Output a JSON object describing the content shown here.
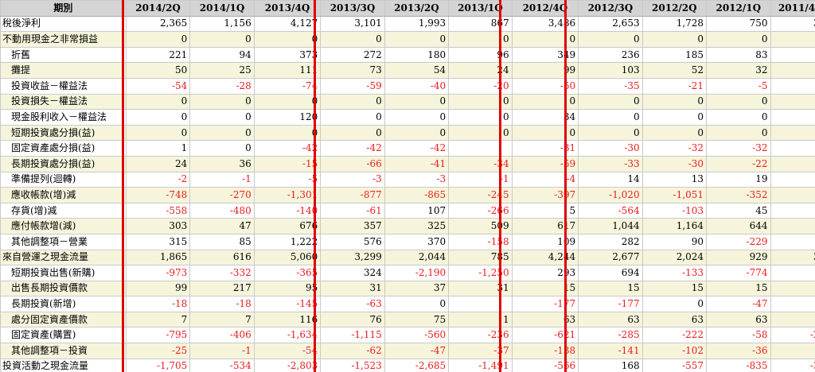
{
  "header": {
    "label": "期別",
    "periods": [
      "2014/2Q",
      "2014/1Q",
      "2013/4Q",
      "2013/3Q",
      "2013/2Q",
      "2013/1Q",
      "2012/4Q",
      "2012/3Q",
      "2012/2Q",
      "2012/1Q",
      "2011/4Q"
    ]
  },
  "rows": [
    {
      "label": "稅後淨利",
      "indent": false,
      "values": [
        "2,365",
        "1,156",
        "4,127",
        "3,101",
        "1,993",
        "867",
        "3,486",
        "2,653",
        "1,728",
        "750",
        "3,5"
      ]
    },
    {
      "label": "不動用現金之非常損益",
      "indent": false,
      "values": [
        "0",
        "0",
        "0",
        "0",
        "0",
        "0",
        "0",
        "0",
        "0",
        "0",
        "0"
      ]
    },
    {
      "label": "折舊",
      "indent": true,
      "values": [
        "221",
        "94",
        "373",
        "272",
        "180",
        "96",
        "349",
        "236",
        "185",
        "83",
        "3"
      ]
    },
    {
      "label": "攤提",
      "indent": true,
      "values": [
        "50",
        "25",
        "111",
        "73",
        "54",
        "24",
        "99",
        "103",
        "52",
        "32",
        "1"
      ]
    },
    {
      "label": "投資收益－權益法",
      "indent": true,
      "values": [
        "-54",
        "-28",
        "-74",
        "-59",
        "-40",
        "-20",
        "-50",
        "-35",
        "-21",
        "-5",
        ""
      ]
    },
    {
      "label": "投資損失－權益法",
      "indent": true,
      "values": [
        "0",
        "0",
        "0",
        "0",
        "0",
        "0",
        "0",
        "0",
        "0",
        "0",
        ""
      ]
    },
    {
      "label": "現金股利收入－權益法",
      "indent": true,
      "values": [
        "0",
        "0",
        "120",
        "0",
        "0",
        "0",
        "34",
        "0",
        "0",
        "0",
        ""
      ]
    },
    {
      "label": "短期投資處分損(益)",
      "indent": true,
      "values": [
        "0",
        "0",
        "0",
        "0",
        "0",
        "0",
        "0",
        "0",
        "0",
        "0",
        ""
      ]
    },
    {
      "label": "固定資產處分損(益)",
      "indent": true,
      "values": [
        "1",
        "0",
        "-42",
        "-42",
        "-42",
        "",
        "-31",
        "-30",
        "-32",
        "-32",
        ""
      ]
    },
    {
      "label": "長期投資處分損(益)",
      "indent": true,
      "values": [
        "24",
        "36",
        "-15",
        "-66",
        "-41",
        "-34",
        "-59",
        "-33",
        "-30",
        "-22",
        ""
      ]
    },
    {
      "label": "準備提列(迴轉)",
      "indent": true,
      "values": [
        "-2",
        "-1",
        "-5",
        "-3",
        "-3",
        "-1",
        "-4",
        "14",
        "13",
        "19",
        ""
      ]
    },
    {
      "label": "應收帳款(增)減",
      "indent": true,
      "values": [
        "-748",
        "-270",
        "-1,301",
        "-877",
        "-865",
        "-245",
        "-397",
        "-1,020",
        "-1,051",
        "-352",
        "-4"
      ]
    },
    {
      "label": "存貨(增)減",
      "indent": true,
      "values": [
        "-558",
        "-480",
        "-140",
        "-61",
        "107",
        "-266",
        "5",
        "-564",
        "-103",
        "45",
        "-3"
      ]
    },
    {
      "label": "應付帳款增(減)",
      "indent": true,
      "values": [
        "303",
        "47",
        "676",
        "357",
        "325",
        "509",
        "617",
        "1,044",
        "1,164",
        "644",
        ""
      ]
    },
    {
      "label": "其他調整項－營業",
      "indent": true,
      "values": [
        "315",
        "85",
        "1,222",
        "576",
        "370",
        "-158",
        "109",
        "282",
        "90",
        "-229",
        "6"
      ]
    },
    {
      "label": "來自營運之現金流量",
      "indent": false,
      "values": [
        "1,865",
        "616",
        "5,060",
        "3,299",
        "2,044",
        "785",
        "4,244",
        "2,677",
        "2,024",
        "929",
        "3,9"
      ]
    },
    {
      "label": "短期投資出售(新購)",
      "indent": true,
      "values": [
        "-973",
        "-332",
        "-365",
        "324",
        "-2,190",
        "-1,250",
        "293",
        "694",
        "-133",
        "-774",
        "-6"
      ]
    },
    {
      "label": "出售長期投資價款",
      "indent": true,
      "values": [
        "99",
        "217",
        "95",
        "31",
        "37",
        "31",
        "15",
        "15",
        "15",
        "15",
        ""
      ]
    },
    {
      "label": "長期投資(新增)",
      "indent": true,
      "values": [
        "-18",
        "-18",
        "-145",
        "-63",
        "0",
        "",
        "-177",
        "-177",
        "0",
        "-47",
        ""
      ]
    },
    {
      "label": "處分固定資產價款",
      "indent": true,
      "values": [
        "7",
        "7",
        "116",
        "76",
        "75",
        "1",
        "63",
        "63",
        "63",
        "63",
        ""
      ]
    },
    {
      "label": "固定資產(購置)",
      "indent": true,
      "values": [
        "-795",
        "-406",
        "-1,634",
        "-1,115",
        "-560",
        "-236",
        "-621",
        "-285",
        "-222",
        "-58",
        "-2,2"
      ]
    },
    {
      "label": "其他調整項－投資",
      "indent": true,
      "values": [
        "-25",
        "-1",
        "-54",
        "-62",
        "-47",
        "-37",
        "-138",
        "-141",
        "-102",
        "-36",
        ""
      ]
    },
    {
      "label": "投資活動之現金流量",
      "indent": false,
      "values": [
        "-1,705",
        "-534",
        "-2,803",
        "-1,523",
        "-2,685",
        "-1,491",
        "-566",
        "168",
        "-557",
        "-835",
        "-3,0"
      ]
    }
  ],
  "colors": {
    "header_bg": "#d4d4d4",
    "alt_row_bg": "#f6f5dc",
    "negative": "#ea1c1c",
    "highlight_border": "#e00000"
  }
}
